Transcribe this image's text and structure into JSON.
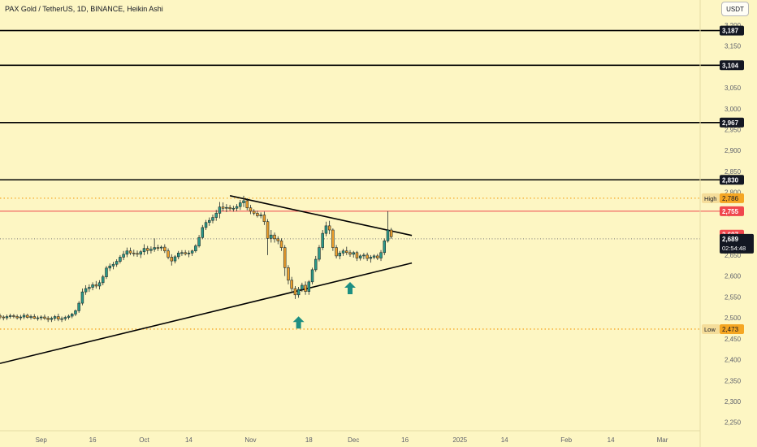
{
  "title": "PAX Gold / TetherUS, 1D, BINANCE, Heikin Ashi",
  "currency_button": "USDT",
  "colors": {
    "background": "#fdf6c3",
    "up_candle": "#2b9a8a",
    "down_candle": "#f0a02c",
    "level_line": "#000000",
    "trend_line": "#000000",
    "high_low_dotted": "#f5a623",
    "red_line": "#f0474d",
    "arrow": "#1d8f82"
  },
  "chart_data": {
    "type": "candlestick",
    "chart_style": "Heikin Ashi",
    "y_axis": {
      "range": [
        2230,
        3260
      ],
      "ticks": [
        3200,
        3150,
        3100,
        3050,
        3000,
        2950,
        2900,
        2850,
        2800,
        2750,
        2700,
        2650,
        2600,
        2550,
        2500,
        2450,
        2400,
        2350,
        2300,
        2250
      ],
      "tick_labels": [
        "3,200",
        "3,150",
        "3,100",
        "3,050",
        "3,000",
        "2,950",
        "2,900",
        "2,850",
        "2,800",
        "2,750",
        "2,700",
        "2,650",
        "2,600",
        "2,550",
        "2,500",
        "2,450",
        "2,400",
        "2,350",
        "2,300",
        "2,250"
      ]
    },
    "x_axis": {
      "range": [
        "2024-08-20",
        "2025-03-12"
      ],
      "ticks": [
        {
          "date": "2024-09-01",
          "label": "Sep"
        },
        {
          "date": "2024-09-16",
          "label": "16"
        },
        {
          "date": "2024-10-01",
          "label": "Oct"
        },
        {
          "date": "2024-10-14",
          "label": "14"
        },
        {
          "date": "2024-11-01",
          "label": "Nov"
        },
        {
          "date": "2024-11-18",
          "label": "18"
        },
        {
          "date": "2024-12-01",
          "label": "Dec"
        },
        {
          "date": "2024-12-16",
          "label": "16"
        },
        {
          "date": "2025-01-01",
          "label": "2025"
        },
        {
          "date": "2025-01-14",
          "label": "14"
        },
        {
          "date": "2025-02-01",
          "label": "Feb"
        },
        {
          "date": "2025-02-14",
          "label": "14"
        },
        {
          "date": "2025-03-01",
          "label": "Mar"
        }
      ]
    },
    "candles": [
      [
        "2024-08-20",
        2505,
        2510,
        2497,
        2502
      ],
      [
        "2024-08-21",
        2502,
        2506,
        2494,
        2500
      ],
      [
        "2024-08-22",
        2500,
        2508,
        2495,
        2503
      ],
      [
        "2024-08-23",
        2503,
        2510,
        2498,
        2505
      ],
      [
        "2024-08-24",
        2505,
        2509,
        2499,
        2503
      ],
      [
        "2024-08-25",
        2503,
        2508,
        2496,
        2500
      ],
      [
        "2024-08-26",
        2500,
        2507,
        2494,
        2502
      ],
      [
        "2024-08-27",
        2502,
        2511,
        2497,
        2506
      ],
      [
        "2024-08-28",
        2506,
        2510,
        2498,
        2501
      ],
      [
        "2024-08-29",
        2501,
        2508,
        2496,
        2503
      ],
      [
        "2024-08-30",
        2503,
        2509,
        2497,
        2499
      ],
      [
        "2024-08-31",
        2499,
        2505,
        2493,
        2500
      ],
      [
        "2024-09-01",
        2500,
        2506,
        2494,
        2502
      ],
      [
        "2024-09-02",
        2502,
        2508,
        2495,
        2499
      ],
      [
        "2024-09-03",
        2499,
        2504,
        2490,
        2496
      ],
      [
        "2024-09-04",
        2496,
        2503,
        2490,
        2499
      ],
      [
        "2024-09-05",
        2499,
        2507,
        2493,
        2503
      ],
      [
        "2024-09-06",
        2503,
        2510,
        2492,
        2497
      ],
      [
        "2024-09-07",
        2497,
        2503,
        2490,
        2498
      ],
      [
        "2024-09-08",
        2498,
        2505,
        2493,
        2501
      ],
      [
        "2024-09-09",
        2501,
        2508,
        2496,
        2504
      ],
      [
        "2024-09-10",
        2504,
        2512,
        2499,
        2509
      ],
      [
        "2024-09-11",
        2509,
        2520,
        2504,
        2517
      ],
      [
        "2024-09-12",
        2517,
        2540,
        2512,
        2535
      ],
      [
        "2024-09-13",
        2535,
        2570,
        2530,
        2562
      ],
      [
        "2024-09-14",
        2562,
        2578,
        2555,
        2570
      ],
      [
        "2024-09-15",
        2570,
        2580,
        2562,
        2573
      ],
      [
        "2024-09-16",
        2573,
        2585,
        2566,
        2579
      ],
      [
        "2024-09-17",
        2579,
        2588,
        2570,
        2576
      ],
      [
        "2024-09-18",
        2576,
        2590,
        2568,
        2584
      ],
      [
        "2024-09-19",
        2584,
        2603,
        2578,
        2598
      ],
      [
        "2024-09-20",
        2598,
        2624,
        2593,
        2619
      ],
      [
        "2024-09-21",
        2619,
        2630,
        2612,
        2624
      ],
      [
        "2024-09-22",
        2624,
        2634,
        2616,
        2628
      ],
      [
        "2024-09-23",
        2628,
        2640,
        2622,
        2635
      ],
      [
        "2024-09-24",
        2635,
        2650,
        2630,
        2645
      ],
      [
        "2024-09-25",
        2645,
        2660,
        2638,
        2652
      ],
      [
        "2024-09-26",
        2652,
        2668,
        2645,
        2660
      ],
      [
        "2024-09-27",
        2660,
        2668,
        2650,
        2655
      ],
      [
        "2024-09-28",
        2655,
        2663,
        2647,
        2654
      ],
      [
        "2024-09-29",
        2654,
        2661,
        2646,
        2652
      ],
      [
        "2024-09-30",
        2652,
        2662,
        2643,
        2658
      ],
      [
        "2024-10-01",
        2658,
        2676,
        2650,
        2666
      ],
      [
        "2024-10-02",
        2666,
        2672,
        2652,
        2661
      ],
      [
        "2024-10-03",
        2661,
        2671,
        2654,
        2664
      ],
      [
        "2024-10-04",
        2664,
        2690,
        2658,
        2668
      ],
      [
        "2024-10-05",
        2668,
        2675,
        2660,
        2667
      ],
      [
        "2024-10-06",
        2667,
        2673,
        2660,
        2669
      ],
      [
        "2024-10-07",
        2669,
        2676,
        2655,
        2660
      ],
      [
        "2024-10-08",
        2660,
        2666,
        2640,
        2645
      ],
      [
        "2024-10-09",
        2645,
        2652,
        2625,
        2636
      ],
      [
        "2024-10-10",
        2636,
        2650,
        2630,
        2646
      ],
      [
        "2024-10-11",
        2646,
        2660,
        2640,
        2655
      ],
      [
        "2024-10-12",
        2655,
        2662,
        2648,
        2656
      ],
      [
        "2024-10-13",
        2656,
        2662,
        2649,
        2653
      ],
      [
        "2024-10-14",
        2653,
        2661,
        2645,
        2655
      ],
      [
        "2024-10-15",
        2655,
        2663,
        2648,
        2660
      ],
      [
        "2024-10-16",
        2660,
        2676,
        2656,
        2672
      ],
      [
        "2024-10-17",
        2672,
        2698,
        2668,
        2692
      ],
      [
        "2024-10-18",
        2692,
        2722,
        2688,
        2716
      ],
      [
        "2024-10-19",
        2716,
        2734,
        2710,
        2728
      ],
      [
        "2024-10-20",
        2728,
        2740,
        2720,
        2733
      ],
      [
        "2024-10-21",
        2733,
        2747,
        2726,
        2740
      ],
      [
        "2024-10-22",
        2740,
        2758,
        2732,
        2750
      ],
      [
        "2024-10-23",
        2750,
        2777,
        2738,
        2765
      ],
      [
        "2024-10-24",
        2765,
        2776,
        2755,
        2762
      ],
      [
        "2024-10-25",
        2762,
        2772,
        2753,
        2764
      ],
      [
        "2024-10-26",
        2764,
        2770,
        2756,
        2761
      ],
      [
        "2024-10-27",
        2761,
        2768,
        2754,
        2762
      ],
      [
        "2024-10-28",
        2762,
        2772,
        2755,
        2766
      ],
      [
        "2024-10-29",
        2766,
        2782,
        2758,
        2775
      ],
      [
        "2024-10-30",
        2775,
        2792,
        2765,
        2780
      ],
      [
        "2024-10-31",
        2780,
        2786,
        2757,
        2763
      ],
      [
        "2024-11-01",
        2763,
        2770,
        2748,
        2755
      ],
      [
        "2024-11-02",
        2755,
        2760,
        2745,
        2750
      ],
      [
        "2024-11-03",
        2750,
        2756,
        2740,
        2744
      ],
      [
        "2024-11-04",
        2744,
        2752,
        2738,
        2746
      ],
      [
        "2024-11-05",
        2746,
        2754,
        2722,
        2730
      ],
      [
        "2024-11-06",
        2730,
        2736,
        2650,
        2690
      ],
      [
        "2024-11-07",
        2690,
        2710,
        2680,
        2698
      ],
      [
        "2024-11-08",
        2698,
        2704,
        2680,
        2689
      ],
      [
        "2024-11-09",
        2689,
        2695,
        2676,
        2684
      ],
      [
        "2024-11-10",
        2684,
        2690,
        2660,
        2668
      ],
      [
        "2024-11-11",
        2668,
        2674,
        2600,
        2620
      ],
      [
        "2024-11-12",
        2620,
        2626,
        2580,
        2590
      ],
      [
        "2024-11-13",
        2590,
        2598,
        2560,
        2570
      ],
      [
        "2024-11-14",
        2570,
        2576,
        2545,
        2555
      ],
      [
        "2024-11-15",
        2555,
        2574,
        2548,
        2568
      ],
      [
        "2024-11-16",
        2568,
        2584,
        2562,
        2578
      ],
      [
        "2024-11-17",
        2578,
        2587,
        2555,
        2563
      ],
      [
        "2024-11-18",
        2563,
        2590,
        2555,
        2586
      ],
      [
        "2024-11-19",
        2586,
        2620,
        2580,
        2615
      ],
      [
        "2024-11-20",
        2615,
        2648,
        2610,
        2640
      ],
      [
        "2024-11-21",
        2640,
        2674,
        2635,
        2668
      ],
      [
        "2024-11-22",
        2668,
        2710,
        2662,
        2702
      ],
      [
        "2024-11-23",
        2702,
        2730,
        2695,
        2720
      ],
      [
        "2024-11-24",
        2720,
        2732,
        2700,
        2710
      ],
      [
        "2024-11-25",
        2710,
        2714,
        2660,
        2668
      ],
      [
        "2024-11-26",
        2668,
        2674,
        2642,
        2648
      ],
      [
        "2024-11-27",
        2648,
        2660,
        2640,
        2655
      ],
      [
        "2024-11-28",
        2655,
        2665,
        2648,
        2660
      ],
      [
        "2024-11-29",
        2660,
        2670,
        2650,
        2656
      ],
      [
        "2024-11-30",
        2656,
        2662,
        2646,
        2652
      ],
      [
        "2024-12-01",
        2652,
        2660,
        2644,
        2656
      ],
      [
        "2024-12-02",
        2656,
        2660,
        2636,
        2643
      ],
      [
        "2024-12-03",
        2643,
        2652,
        2637,
        2648
      ],
      [
        "2024-12-04",
        2648,
        2655,
        2640,
        2650
      ],
      [
        "2024-12-05",
        2650,
        2656,
        2636,
        2642
      ],
      [
        "2024-12-06",
        2642,
        2650,
        2632,
        2645
      ],
      [
        "2024-12-07",
        2645,
        2652,
        2640,
        2648
      ],
      [
        "2024-12-08",
        2648,
        2653,
        2638,
        2643
      ],
      [
        "2024-12-09",
        2643,
        2662,
        2636,
        2656
      ],
      [
        "2024-12-10",
        2656,
        2690,
        2650,
        2684
      ],
      [
        "2024-12-11",
        2684,
        2755,
        2680,
        2710
      ],
      [
        "2024-12-12",
        2710,
        2715,
        2689,
        2694
      ]
    ],
    "horizontal_levels": [
      {
        "value": 3187,
        "label": "3,187"
      },
      {
        "value": 3104,
        "label": "3,104"
      },
      {
        "value": 2967,
        "label": "2,967"
      },
      {
        "value": 2830,
        "label": "2,830"
      }
    ],
    "red_level": {
      "value": 2755,
      "label": "2,755"
    },
    "high_marker": {
      "value": 2786,
      "tag": "High",
      "label": "2,786"
    },
    "low_marker": {
      "value": 2473,
      "tag": "Low",
      "label": "2,473"
    },
    "current_price": {
      "value": 2689,
      "label": "2,689",
      "countdown": "02:54:48"
    },
    "red_price_tag": {
      "value": 2697,
      "label": "2,697"
    },
    "trend_lines": [
      {
        "name": "upper",
        "start": {
          "date": "2024-10-26",
          "price": 2792
        },
        "end": {
          "date": "2024-12-18",
          "price": 2697
        }
      },
      {
        "name": "lower",
        "start": {
          "date": "2024-08-20",
          "price": 2391
        },
        "end": {
          "date": "2024-12-18",
          "price": 2631
        }
      }
    ],
    "arrows": [
      {
        "date": "2024-11-15",
        "price": 2488,
        "direction": "up"
      },
      {
        "date": "2024-11-30",
        "price": 2570,
        "direction": "up"
      }
    ]
  }
}
